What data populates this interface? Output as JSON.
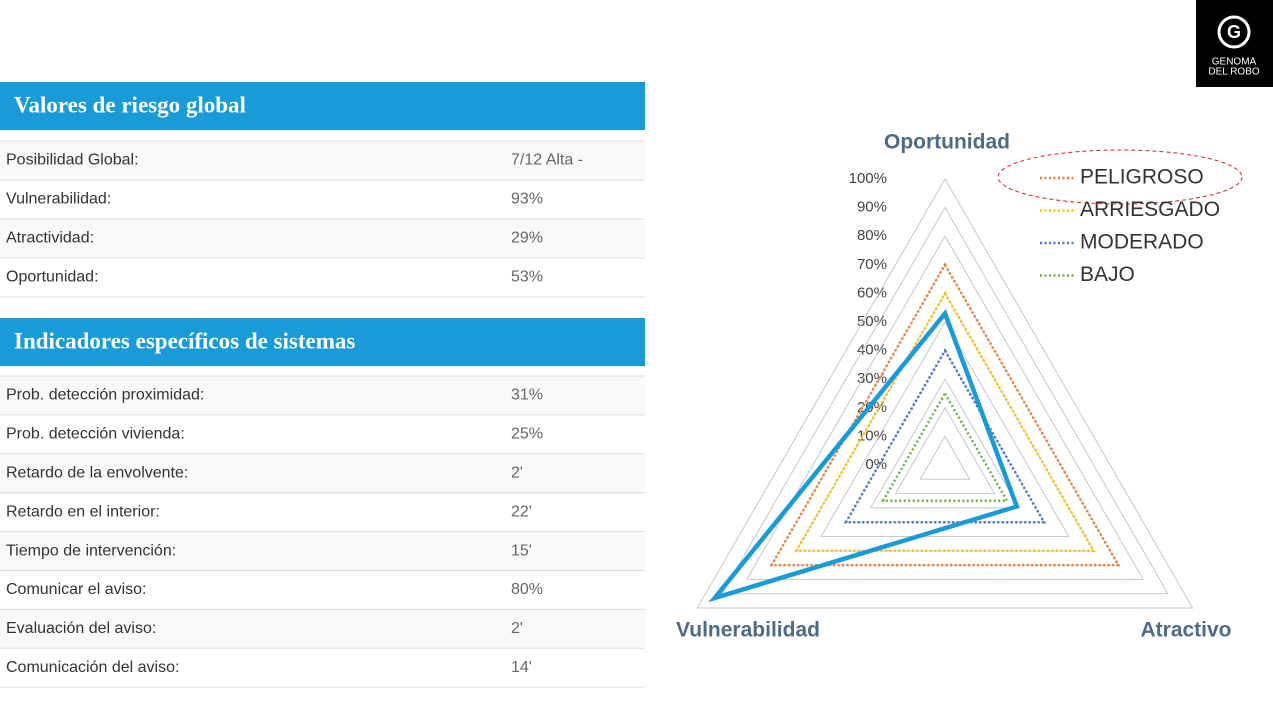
{
  "logo": {
    "mark": "G",
    "lines": [
      "GENOMA",
      "DEL ROBO"
    ]
  },
  "tables": [
    {
      "title": "Valores de riesgo global",
      "rows": [
        [
          "Posibilidad Global:",
          "7/12 Alta -"
        ],
        [
          "Vulnerabilidad:",
          "93%"
        ],
        [
          "Atractividad:",
          "29%"
        ],
        [
          "Oportunidad:",
          "53%"
        ]
      ]
    },
    {
      "title": "Indicadores específicos de sistemas",
      "rows": [
        [
          "Prob. detección proximidad:",
          "31%"
        ],
        [
          "Prob. detección vivienda:",
          "25%"
        ],
        [
          "Retardo de la envolvente:",
          "2'"
        ],
        [
          "Retardo en el interior:",
          "22'"
        ],
        [
          "Tiempo de intervención:",
          "15'"
        ],
        [
          "Comunicar el aviso:",
          "80%"
        ],
        [
          "Evaluación del aviso:",
          "2'"
        ],
        [
          "Comunicación del aviso:",
          "14'"
        ]
      ]
    }
  ],
  "chart_data": {
    "type": "radar",
    "axes": [
      "Oportunidad",
      "Atractivo",
      "Vulnerabilidad"
    ],
    "ylim": [
      0,
      100
    ],
    "yticks": [
      {
        "value": 0,
        "label": "0%"
      },
      {
        "value": 10,
        "label": "10%"
      },
      {
        "value": 20,
        "label": "20%"
      },
      {
        "value": 30,
        "label": "30%"
      },
      {
        "value": 40,
        "label": "40%"
      },
      {
        "value": 50,
        "label": "50%"
      },
      {
        "value": 60,
        "label": "60%"
      },
      {
        "value": 70,
        "label": "70%"
      },
      {
        "value": 80,
        "label": "80%"
      },
      {
        "value": 90,
        "label": "90%"
      },
      {
        "value": 100,
        "label": "100%"
      }
    ],
    "grid": true,
    "legend": "top-right",
    "series": [
      {
        "color": "#1a9ad6",
        "values": [
          53,
          29,
          93
        ]
      },
      {
        "name": "PELIGROSO",
        "color": "#ed7d31",
        "values": [
          70,
          70,
          70
        ]
      },
      {
        "name": "ARRIESGADO",
        "color": "#ffc000",
        "values": [
          60,
          60,
          60
        ]
      },
      {
        "name": "MODERADO",
        "color": "#4472c4",
        "values": [
          40,
          40,
          40
        ]
      },
      {
        "name": "BAJO",
        "color": "#70ad47",
        "values": [
          25,
          25,
          25
        ]
      }
    ]
  }
}
